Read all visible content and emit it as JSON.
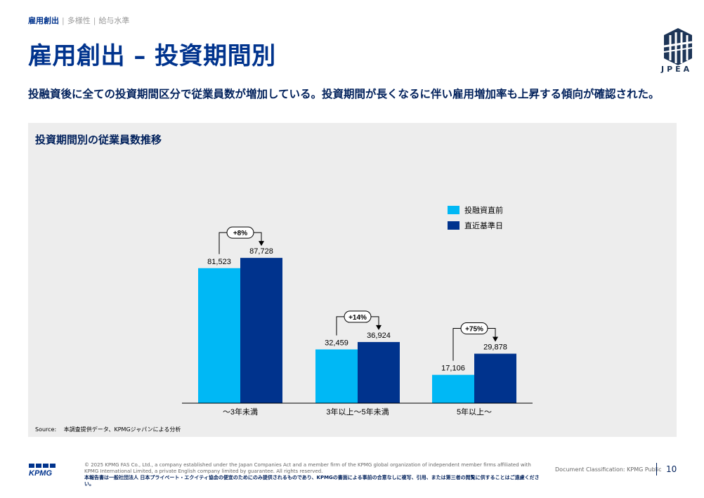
{
  "breadcrumb": {
    "items": [
      "雇用創出",
      "多様性",
      "給与水準"
    ]
  },
  "title": "雇用創出 – 投資期間別",
  "logo": {
    "text": "JPEA"
  },
  "lead": "投融資後に全ての投資期間区分で従業員数が増加している。投資期間が長くなるに伴い雇用増加率も上昇する傾向が確認された。",
  "panel": {
    "title": "投資期間別の従業員数推移",
    "source": "Source:　 本調査提供データ、KPMGジャパンによる分析"
  },
  "chart_data": {
    "type": "bar",
    "title": "投資期間別の従業員数推移",
    "categories": [
      "～3年未満",
      "3年以上～5年未満",
      "5年以上～"
    ],
    "series": [
      {
        "name": "投融資直前",
        "color": "#00B8F5",
        "values": [
          81523,
          32459,
          17106
        ],
        "labels": [
          "81,523",
          "32,459",
          "17,106"
        ]
      },
      {
        "name": "直近基準日",
        "color": "#00338D",
        "values": [
          87728,
          36924,
          29878
        ],
        "labels": [
          "87,728",
          "36,924",
          "29,878"
        ]
      }
    ],
    "growth_labels": [
      "+8%",
      "+14%",
      "+75%"
    ],
    "ylim": [
      0,
      95000
    ],
    "legend": "right",
    "grid": false
  },
  "footer": {
    "logo": "KPMG",
    "legal_en": "© 2025 KPMG FAS Co., Ltd., a company established under the Japan Companies Act and a member firm of the KPMG global organization of independent member firms affiliated with KPMG International Limited, a private English company limited by guarantee. All rights reserved.",
    "legal_jp": "本報告書は一般社団法人 日本プライベート・エクイティ協会の便宜のためにのみ提供されるものであり、KPMGの書面による事前の合意なしに複写、引用、または第三者の閲覧に供することはご遠慮ください。",
    "classification": "Document Classification: KPMG Public",
    "page": "10"
  }
}
